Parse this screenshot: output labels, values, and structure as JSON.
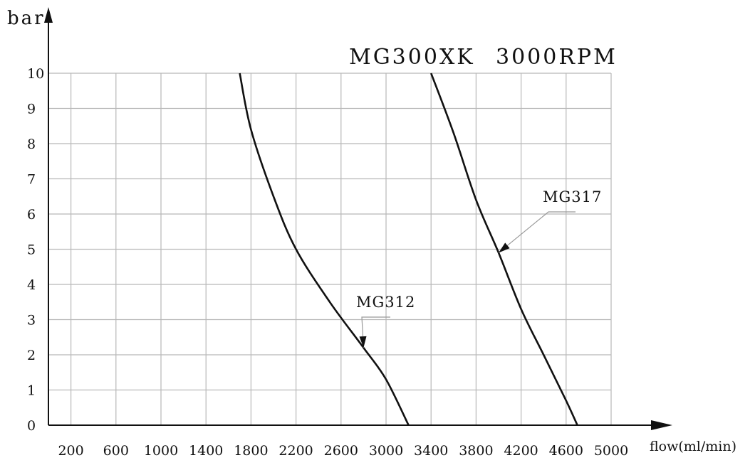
{
  "chart_data": {
    "type": "line",
    "title": "MG300XK",
    "subtitle": "3000RPM",
    "xlabel": "flow(ml/min)",
    "ylabel": "bar",
    "xlim": [
      0,
      5000
    ],
    "ylim": [
      0,
      10
    ],
    "x_ticks": [
      200,
      600,
      1000,
      1400,
      1800,
      2200,
      2600,
      3000,
      3400,
      3800,
      4200,
      4600,
      5000
    ],
    "y_ticks": [
      0,
      1,
      2,
      3,
      4,
      5,
      6,
      7,
      8,
      9,
      10
    ],
    "grid": true,
    "series": [
      {
        "name": "MG312",
        "x": [
          1700,
          1800,
          2000,
          2200,
          2500,
          2800,
          3000,
          3200
        ],
        "y": [
          10,
          8.4,
          6.5,
          5.0,
          3.5,
          2.2,
          1.3,
          0
        ]
      },
      {
        "name": "MG317",
        "x": [
          3400,
          3600,
          3800,
          4000,
          4200,
          4400,
          4600,
          4700
        ],
        "y": [
          10,
          8.3,
          6.4,
          4.9,
          3.3,
          2.0,
          0.7,
          0
        ]
      }
    ]
  }
}
